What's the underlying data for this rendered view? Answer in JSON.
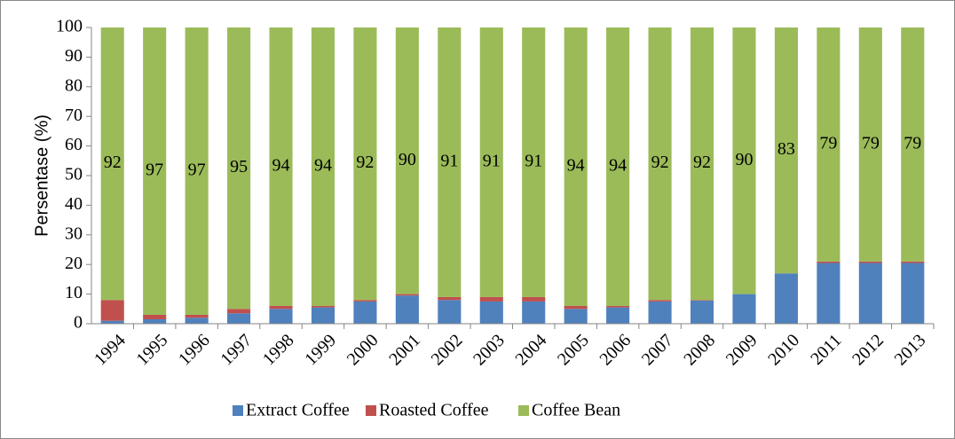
{
  "chart_data": {
    "type": "stacked_bar",
    "y_label": "Persentase (%)",
    "categories": [
      "1994",
      "1995",
      "1996",
      "1997",
      "1998",
      "1999",
      "2000",
      "2001",
      "2002",
      "2003",
      "2004",
      "2005",
      "2006",
      "2007",
      "2008",
      "2009",
      "2010",
      "2011",
      "2012",
      "2013"
    ],
    "series": [
      {
        "name": "Extract Coffee",
        "color": "#4f81bd",
        "values": [
          1,
          1.5,
          2,
          3.5,
          5,
          5.5,
          7.5,
          9.5,
          8,
          7.5,
          7.5,
          5,
          5.5,
          7.5,
          7.8,
          10,
          17,
          20.5,
          20.5,
          20.5
        ]
      },
      {
        "name": "Roasted Coffee",
        "color": "#c0504d",
        "values": [
          7,
          1.5,
          1,
          1.5,
          1,
          0.5,
          0.5,
          0.5,
          1,
          1.5,
          1.5,
          1,
          0.5,
          0.5,
          0.2,
          0,
          0,
          0.5,
          0.5,
          0.5
        ]
      },
      {
        "name": "Coffee Bean",
        "color": "#9bbb59",
        "values": [
          92,
          97,
          97,
          95,
          94,
          94,
          92,
          90,
          91,
          91,
          91,
          94,
          94,
          92,
          92,
          90,
          83,
          79,
          79,
          79
        ],
        "show_labels": true
      }
    ],
    "ylim": [
      0,
      100
    ],
    "yticks": [
      0,
      10,
      20,
      30,
      40,
      50,
      60,
      70,
      80,
      90,
      100
    ],
    "legend": "bottom"
  }
}
